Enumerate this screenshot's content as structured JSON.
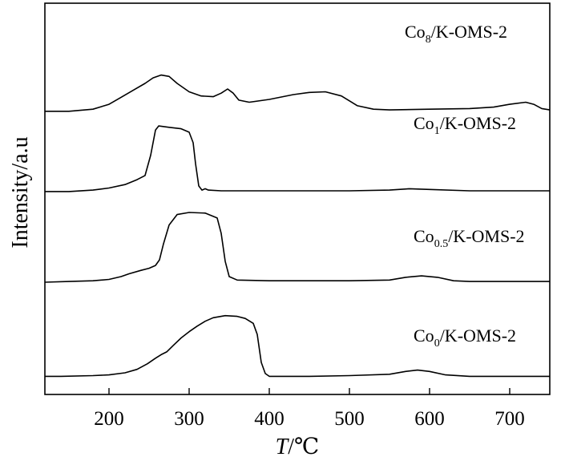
{
  "chart_data": {
    "type": "line",
    "xlabel_italic": "T",
    "xlabel_unit": "/℃",
    "ylabel": "Intensity/a.u",
    "xlim": [
      120,
      750
    ],
    "xticks": [
      200,
      300,
      400,
      500,
      600,
      700
    ],
    "grid": false,
    "legend": "inline labels beside each curve",
    "line_color": "#000000",
    "series": [
      {
        "name_base": "Co",
        "name_sub": "0",
        "name_rest": "/K-OMS-2",
        "offset": 0.2,
        "points": [
          [
            120,
            0.0
          ],
          [
            140,
            0.0
          ],
          [
            180,
            0.01
          ],
          [
            200,
            0.02
          ],
          [
            220,
            0.05
          ],
          [
            235,
            0.1
          ],
          [
            248,
            0.18
          ],
          [
            258,
            0.26
          ],
          [
            265,
            0.31
          ],
          [
            272,
            0.35
          ],
          [
            280,
            0.44
          ],
          [
            290,
            0.55
          ],
          [
            300,
            0.64
          ],
          [
            310,
            0.72
          ],
          [
            320,
            0.79
          ],
          [
            330,
            0.84
          ],
          [
            345,
            0.87
          ],
          [
            360,
            0.86
          ],
          [
            370,
            0.83
          ],
          [
            380,
            0.76
          ],
          [
            385,
            0.6
          ],
          [
            390,
            0.2
          ],
          [
            395,
            0.04
          ],
          [
            400,
            0.0
          ],
          [
            450,
            0.0
          ],
          [
            500,
            0.01
          ],
          [
            550,
            0.03
          ],
          [
            570,
            0.07
          ],
          [
            585,
            0.09
          ],
          [
            600,
            0.07
          ],
          [
            620,
            0.02
          ],
          [
            650,
            0.0
          ],
          [
            700,
            0.0
          ],
          [
            750,
            0.0
          ]
        ]
      },
      {
        "name_base": "Co",
        "name_sub": "0.5",
        "name_rest": "/K-OMS-2",
        "offset": 1.55,
        "points": [
          [
            120,
            0.0
          ],
          [
            150,
            0.01
          ],
          [
            180,
            0.02
          ],
          [
            200,
            0.04
          ],
          [
            215,
            0.08
          ],
          [
            225,
            0.12
          ],
          [
            240,
            0.17
          ],
          [
            250,
            0.2
          ],
          [
            258,
            0.24
          ],
          [
            263,
            0.32
          ],
          [
            268,
            0.55
          ],
          [
            275,
            0.82
          ],
          [
            285,
            0.97
          ],
          [
            300,
            1.0
          ],
          [
            320,
            0.99
          ],
          [
            335,
            0.92
          ],
          [
            340,
            0.7
          ],
          [
            345,
            0.3
          ],
          [
            350,
            0.08
          ],
          [
            360,
            0.03
          ],
          [
            400,
            0.02
          ],
          [
            450,
            0.02
          ],
          [
            500,
            0.02
          ],
          [
            550,
            0.03
          ],
          [
            570,
            0.07
          ],
          [
            590,
            0.09
          ],
          [
            610,
            0.07
          ],
          [
            630,
            0.02
          ],
          [
            650,
            0.01
          ],
          [
            700,
            0.01
          ],
          [
            750,
            0.01
          ]
        ]
      },
      {
        "name_base": "Co",
        "name_sub": "1",
        "name_rest": "/K-OMS-2",
        "offset": 2.85,
        "points": [
          [
            120,
            0.0
          ],
          [
            150,
            0.0
          ],
          [
            180,
            0.02
          ],
          [
            200,
            0.05
          ],
          [
            220,
            0.1
          ],
          [
            235,
            0.17
          ],
          [
            245,
            0.23
          ],
          [
            252,
            0.52
          ],
          [
            258,
            0.88
          ],
          [
            262,
            0.94
          ],
          [
            275,
            0.92
          ],
          [
            290,
            0.9
          ],
          [
            300,
            0.85
          ],
          [
            305,
            0.7
          ],
          [
            308,
            0.4
          ],
          [
            312,
            0.08
          ],
          [
            316,
            0.02
          ],
          [
            320,
            0.04
          ],
          [
            324,
            0.02
          ],
          [
            340,
            0.01
          ],
          [
            400,
            0.01
          ],
          [
            500,
            0.01
          ],
          [
            550,
            0.02
          ],
          [
            575,
            0.04
          ],
          [
            600,
            0.03
          ],
          [
            650,
            0.01
          ],
          [
            700,
            0.01
          ],
          [
            750,
            0.01
          ]
        ]
      },
      {
        "name_base": "Co",
        "name_sub": "8",
        "name_rest": "/K-OMS-2",
        "offset": 4.0,
        "points": [
          [
            120,
            0.0
          ],
          [
            150,
            0.0
          ],
          [
            180,
            0.03
          ],
          [
            200,
            0.1
          ],
          [
            215,
            0.2
          ],
          [
            230,
            0.3
          ],
          [
            245,
            0.4
          ],
          [
            255,
            0.48
          ],
          [
            265,
            0.52
          ],
          [
            275,
            0.5
          ],
          [
            285,
            0.4
          ],
          [
            300,
            0.28
          ],
          [
            315,
            0.22
          ],
          [
            330,
            0.21
          ],
          [
            340,
            0.26
          ],
          [
            348,
            0.32
          ],
          [
            355,
            0.26
          ],
          [
            362,
            0.16
          ],
          [
            375,
            0.13
          ],
          [
            400,
            0.17
          ],
          [
            430,
            0.24
          ],
          [
            450,
            0.27
          ],
          [
            470,
            0.28
          ],
          [
            490,
            0.22
          ],
          [
            510,
            0.08
          ],
          [
            530,
            0.03
          ],
          [
            550,
            0.02
          ],
          [
            600,
            0.03
          ],
          [
            650,
            0.04
          ],
          [
            680,
            0.06
          ],
          [
            700,
            0.1
          ],
          [
            720,
            0.13
          ],
          [
            730,
            0.1
          ],
          [
            740,
            0.04
          ],
          [
            750,
            0.02
          ]
        ]
      }
    ]
  }
}
